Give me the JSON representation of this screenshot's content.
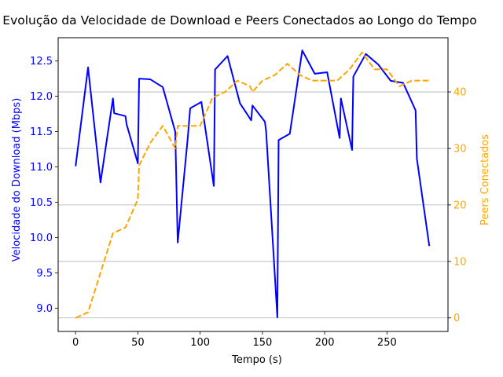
{
  "chart_data": {
    "type": "line",
    "title": "Evolução da Velocidade de Download e Peers Conectados ao Longo do Tempo",
    "xlabel": "Tempo (s)",
    "ylabel_left": "Velocidade do Download (Mbps)",
    "ylabel_right": "Peers Conectados",
    "xlim": [
      -14,
      299
    ],
    "ylim_left": [
      8.67,
      12.83
    ],
    "ylim_right": [
      -2.4,
      49.6
    ],
    "x_ticks": [
      0,
      50,
      100,
      150,
      200,
      250
    ],
    "y_ticks_left": [
      9.0,
      9.5,
      10.0,
      10.5,
      11.0,
      11.5,
      12.0,
      12.5
    ],
    "y_ticks_right": [
      0,
      10,
      20,
      30,
      40
    ],
    "grid": "horizontal lines at right-axis ticks",
    "colors": {
      "download": "#0000ff",
      "peers": "#ffa500",
      "grid": "#b0b0b0",
      "axis": "#000000"
    },
    "series": [
      {
        "axis": "left",
        "style": "solid",
        "points": [
          [
            0,
            11.01
          ],
          [
            10,
            12.41
          ],
          [
            20,
            10.78
          ],
          [
            30,
            11.97
          ],
          [
            31,
            11.76
          ],
          [
            40,
            11.72
          ],
          [
            41,
            11.6
          ],
          [
            50,
            11.05
          ],
          [
            51,
            12.25
          ],
          [
            60,
            12.24
          ],
          [
            70,
            12.13
          ],
          [
            80,
            11.5
          ],
          [
            82,
            9.93
          ],
          [
            90,
            11.4
          ],
          [
            92,
            11.83
          ],
          [
            101,
            11.92
          ],
          [
            111,
            10.73
          ],
          [
            112,
            12.38
          ],
          [
            122,
            12.57
          ],
          [
            132,
            11.9
          ],
          [
            141,
            11.66
          ],
          [
            142,
            11.87
          ],
          [
            152,
            11.64
          ],
          [
            153,
            11.5
          ],
          [
            162,
            8.87
          ],
          [
            163,
            11.38
          ],
          [
            172,
            11.47
          ],
          [
            182,
            12.65
          ],
          [
            192,
            12.32
          ],
          [
            202,
            12.34
          ],
          [
            212,
            11.41
          ],
          [
            213,
            11.97
          ],
          [
            222,
            11.24
          ],
          [
            223,
            12.28
          ],
          [
            233,
            12.6
          ],
          [
            243,
            12.45
          ],
          [
            253,
            12.22
          ],
          [
            263,
            12.19
          ],
          [
            273,
            11.8
          ],
          [
            274,
            11.12
          ],
          [
            284,
            9.88
          ]
        ]
      },
      {
        "axis": "right",
        "style": "dashed",
        "points": [
          [
            0,
            0
          ],
          [
            10,
            1
          ],
          [
            20,
            8
          ],
          [
            30,
            15
          ],
          [
            40,
            16
          ],
          [
            50,
            21
          ],
          [
            51,
            27
          ],
          [
            60,
            31
          ],
          [
            70,
            34
          ],
          [
            80,
            30
          ],
          [
            82,
            34
          ],
          [
            90,
            34
          ],
          [
            100,
            34
          ],
          [
            110,
            39
          ],
          [
            120,
            40
          ],
          [
            130,
            42
          ],
          [
            140,
            41
          ],
          [
            142,
            40
          ],
          [
            150,
            42
          ],
          [
            160,
            43
          ],
          [
            170,
            45
          ],
          [
            180,
            43
          ],
          [
            190,
            42
          ],
          [
            200,
            42
          ],
          [
            210,
            42
          ],
          [
            220,
            44
          ],
          [
            230,
            47
          ],
          [
            240,
            44
          ],
          [
            250,
            44
          ],
          [
            260,
            41
          ],
          [
            270,
            42
          ],
          [
            284,
            42
          ]
        ]
      }
    ]
  }
}
